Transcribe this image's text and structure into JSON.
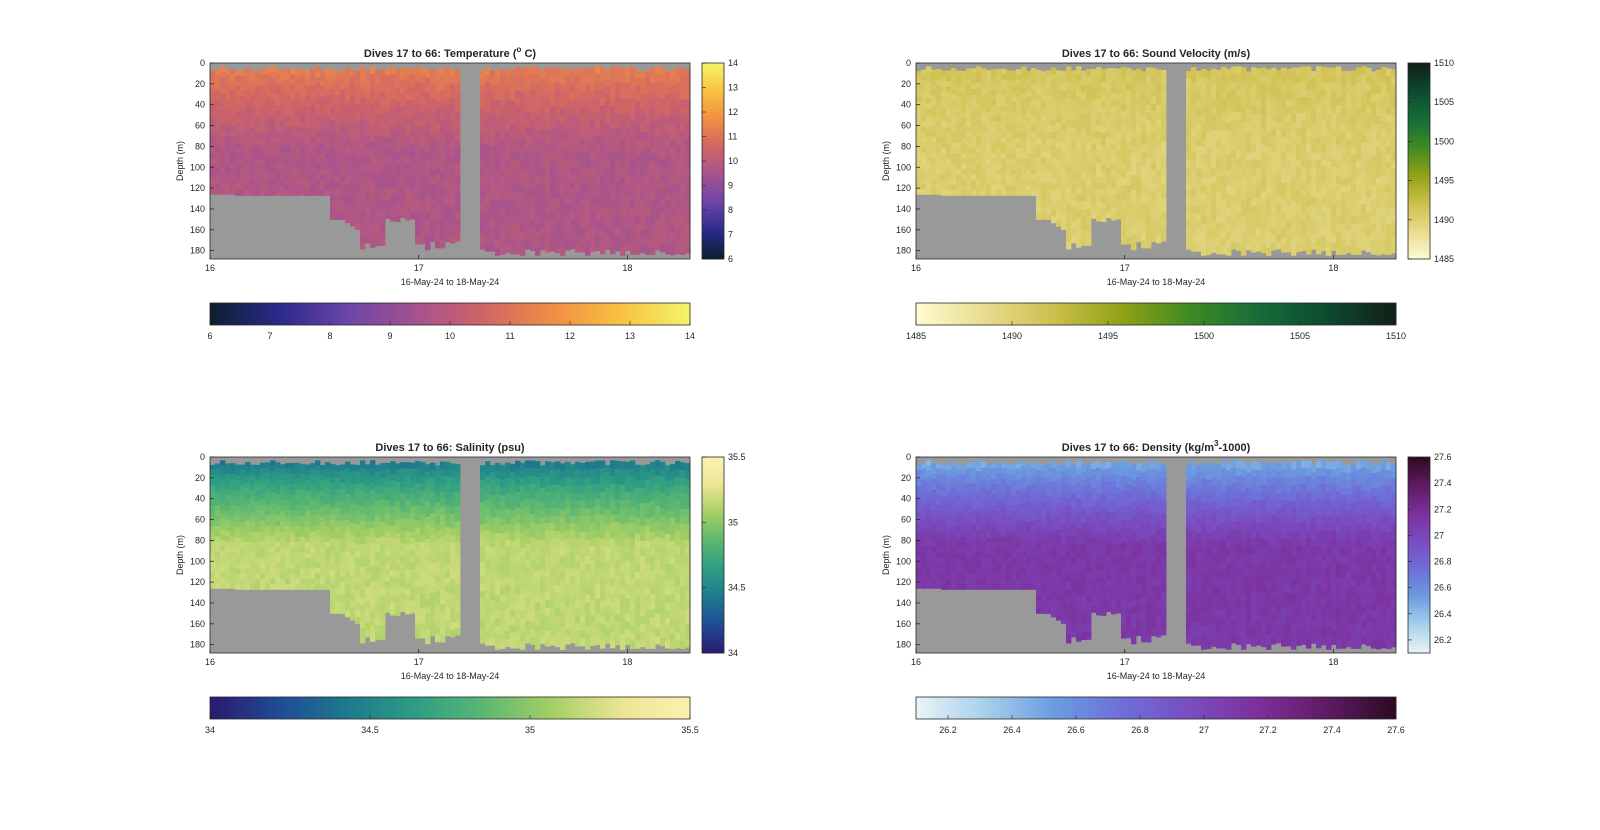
{
  "chart_data": [
    {
      "type": "heatmap",
      "title": "Dives 17 to 66: Temperature (",
      "title_sup": "o",
      "title_end": " C)",
      "xlabel": "16-May-24 to 18-May-24",
      "ylabel": "Depth (m)",
      "xlim": [
        16,
        18.3
      ],
      "ylim": [
        0,
        188
      ],
      "x_ticks": [
        "16",
        "17",
        "18"
      ],
      "y_ticks": [
        "0",
        "20",
        "40",
        "60",
        "80",
        "100",
        "120",
        "140",
        "160",
        "180"
      ],
      "colorbar_right": {
        "range": [
          6,
          14
        ],
        "ticks": [
          "6",
          "7",
          "8",
          "9",
          "10",
          "11",
          "12",
          "13",
          "14"
        ]
      },
      "colorbar_bottom": {
        "range": [
          6,
          14
        ],
        "ticks": [
          "6",
          "7",
          "8",
          "9",
          "10",
          "11",
          "12",
          "13",
          "14"
        ]
      },
      "colormap": [
        "#0b1e2e",
        "#2a2a8a",
        "#6b45a8",
        "#a5528f",
        "#d06566",
        "#f18e43",
        "#f8c240",
        "#f4f66a"
      ],
      "nodata_color": "#999999",
      "surface_value": 11.6,
      "deep_value": 9.7
    },
    {
      "type": "heatmap",
      "title": "Dives 17 to 66: Sound Velocity (m/s)",
      "xlabel": "16-May-24 to 18-May-24",
      "ylabel": "Depth (m)",
      "xlim": [
        16,
        18.3
      ],
      "ylim": [
        0,
        188
      ],
      "x_ticks": [
        "16",
        "17",
        "18"
      ],
      "y_ticks": [
        "0",
        "20",
        "40",
        "60",
        "80",
        "100",
        "120",
        "140",
        "160",
        "180"
      ],
      "colorbar_right": {
        "range": [
          1485,
          1510
        ],
        "ticks": [
          "1485",
          "1490",
          "1495",
          "1500",
          "1505",
          "1510"
        ]
      },
      "colorbar_bottom": {
        "range": [
          1485,
          1510
        ],
        "ticks": [
          "1485",
          "1490",
          "1495",
          "1500",
          "1505",
          "1510"
        ]
      },
      "colormap": [
        "#fdfbd0",
        "#e8dc8f",
        "#cdbf4c",
        "#8fa216",
        "#3f8a22",
        "#166c39",
        "#0c4a2f",
        "#112017"
      ],
      "nodata_color": "#999999",
      "surface_value": 1491.5,
      "deep_value": 1490.3
    },
    {
      "type": "heatmap",
      "title": "Dives 17 to 66: Salinity (psu)",
      "xlabel": "16-May-24 to 18-May-24",
      "ylabel": "Depth (m)",
      "xlim": [
        16,
        18.3
      ],
      "ylim": [
        0,
        188
      ],
      "x_ticks": [
        "16",
        "17",
        "18"
      ],
      "y_ticks": [
        "0",
        "20",
        "40",
        "60",
        "80",
        "100",
        "120",
        "140",
        "160",
        "180"
      ],
      "colorbar_right": {
        "range": [
          34,
          35.5
        ],
        "ticks": [
          "34",
          "34.5",
          "35",
          "35.5"
        ]
      },
      "colorbar_bottom": {
        "range": [
          34,
          35.5
        ],
        "ticks": [
          "34",
          "34.5",
          "35",
          "35.5"
        ]
      },
      "colormap": [
        "#2a1b6e",
        "#1f4a96",
        "#1d7a8e",
        "#2e9d84",
        "#5bb871",
        "#a6cf64",
        "#ece594",
        "#fbf1b0"
      ],
      "nodata_color": "#999999",
      "surface_value": 34.3,
      "deep_value": 35.15
    },
    {
      "type": "heatmap",
      "title": "Dives 17 to 66: Density (kg/m",
      "title_sup": "3",
      "title_end": "-1000)",
      "xlabel": "16-May-24 to 18-May-24",
      "ylabel": "Depth (m)",
      "xlim": [
        16,
        18.3
      ],
      "ylim": [
        0,
        188
      ],
      "x_ticks": [
        "16",
        "17",
        "18"
      ],
      "y_ticks": [
        "0",
        "20",
        "40",
        "60",
        "80",
        "100",
        "120",
        "140",
        "160",
        "180"
      ],
      "colorbar_right": {
        "range": [
          26.1,
          27.6
        ],
        "ticks": [
          "26.2",
          "26.4",
          "26.6",
          "26.8",
          "27",
          "27.2",
          "27.4",
          "27.6"
        ]
      },
      "colorbar_bottom": {
        "range": [
          26.1,
          27.6
        ],
        "ticks": [
          "26.2",
          "26.4",
          "26.6",
          "26.8",
          "27",
          "27.2",
          "27.4",
          "27.6"
        ]
      },
      "colormap": [
        "#e9f4f6",
        "#a8d0ec",
        "#6a9de0",
        "#6e6fd8",
        "#7a4cc0",
        "#7d2f9a",
        "#5e1a63",
        "#2c0a22"
      ],
      "nodata_color": "#999999",
      "surface_value": 26.35,
      "deep_value": 27.1
    }
  ]
}
